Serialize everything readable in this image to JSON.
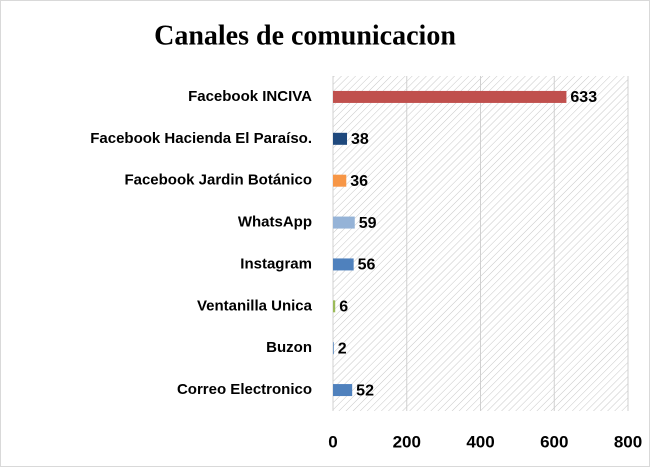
{
  "chart_data": {
    "type": "bar",
    "orientation": "horizontal",
    "title": "Canales  de comunicacion",
    "categories": [
      "Facebook INCIVA",
      "Facebook Hacienda El Paraíso.",
      "Facebook Jardin Botánico",
      "WhatsApp",
      "Instagram",
      "Ventanilla Unica",
      "Buzon",
      "Correo Electronico"
    ],
    "values": [
      633,
      38,
      36,
      59,
      56,
      6,
      2,
      52
    ],
    "colors": [
      "#c0504d",
      "#1f497d",
      "#f79646",
      "#95b3d7",
      "#4f81bd",
      "#9bbb59",
      "#4f81bd",
      "#4f81bd"
    ],
    "xlim": [
      0,
      800
    ],
    "xticks": [
      0,
      200,
      400,
      600,
      800
    ],
    "grid": true
  }
}
